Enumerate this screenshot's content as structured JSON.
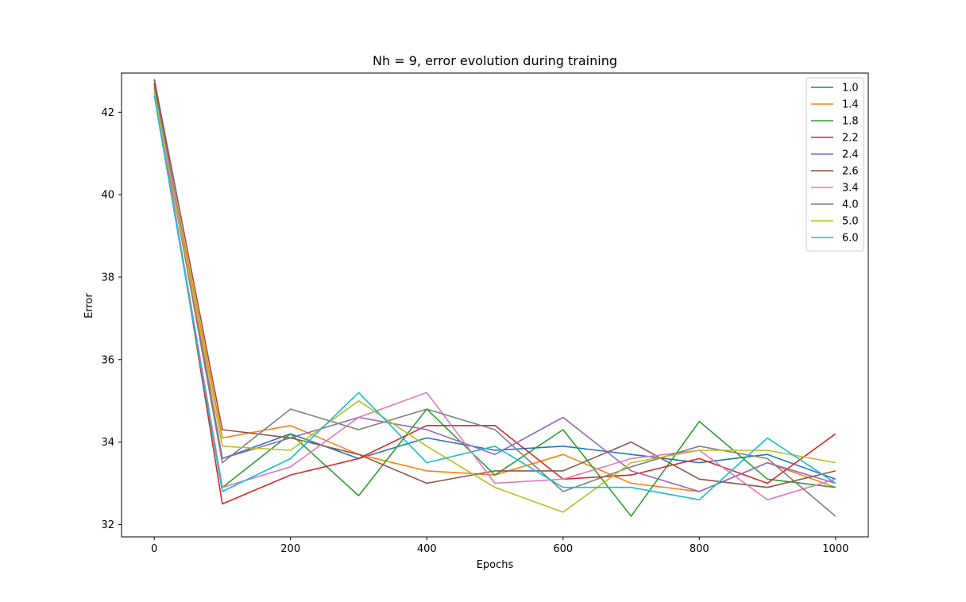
{
  "chart_data": {
    "type": "line",
    "title": "Nh = 9, error evolution during training",
    "xlabel": "Epochs",
    "ylabel": "Error",
    "xlim": [
      -48,
      1048
    ],
    "ylim": [
      31.7,
      42.95
    ],
    "xticks": [
      0,
      200,
      400,
      600,
      800,
      1000
    ],
    "yticks": [
      32,
      34,
      36,
      38,
      40,
      42
    ],
    "grid": false,
    "legend_position": "top-right",
    "x": [
      0,
      100,
      200,
      300,
      400,
      500,
      600,
      700,
      800,
      900,
      1000
    ],
    "series": [
      {
        "name": "1.0",
        "color": "#1f77b4",
        "values": [
          42.7,
          33.6,
          34.2,
          33.6,
          34.1,
          33.8,
          33.9,
          33.7,
          33.5,
          33.7,
          33.1
        ]
      },
      {
        "name": "1.4",
        "color": "#ff7f0e",
        "values": [
          42.6,
          34.1,
          34.4,
          33.7,
          33.3,
          33.2,
          33.7,
          33.0,
          32.8,
          33.5,
          32.9
        ]
      },
      {
        "name": "1.8",
        "color": "#2ca02c",
        "values": [
          42.5,
          32.9,
          34.2,
          32.7,
          34.8,
          33.2,
          34.3,
          32.2,
          34.5,
          33.1,
          32.9
        ]
      },
      {
        "name": "2.2",
        "color": "#d62728",
        "values": [
          42.7,
          32.5,
          33.2,
          33.6,
          34.4,
          34.4,
          33.1,
          33.2,
          33.6,
          33.0,
          34.2
        ]
      },
      {
        "name": "2.4",
        "color": "#9467bd",
        "values": [
          42.8,
          33.6,
          34.1,
          34.6,
          34.3,
          33.7,
          34.6,
          33.3,
          32.8,
          33.5,
          33.0
        ]
      },
      {
        "name": "2.6",
        "color": "#8c564b",
        "values": [
          42.8,
          34.3,
          34.1,
          33.7,
          33.0,
          33.3,
          33.3,
          34.0,
          33.1,
          32.9,
          33.3
        ]
      },
      {
        "name": "3.4",
        "color": "#e377c2",
        "values": [
          42.5,
          32.9,
          33.4,
          34.6,
          35.2,
          33.0,
          33.1,
          33.6,
          33.8,
          32.6,
          33.1
        ]
      },
      {
        "name": "4.0",
        "color": "#7f7f7f",
        "values": [
          42.6,
          33.5,
          34.8,
          34.3,
          34.8,
          34.3,
          32.8,
          33.4,
          33.9,
          33.6,
          32.2
        ]
      },
      {
        "name": "5.0",
        "color": "#bcbd22",
        "values": [
          42.5,
          33.9,
          33.8,
          35.0,
          33.9,
          32.9,
          32.3,
          33.5,
          33.8,
          33.8,
          33.5
        ]
      },
      {
        "name": "6.0",
        "color": "#17becf",
        "values": [
          42.4,
          32.8,
          33.6,
          35.2,
          33.5,
          33.9,
          32.9,
          32.9,
          32.6,
          34.1,
          33.0
        ]
      }
    ]
  }
}
